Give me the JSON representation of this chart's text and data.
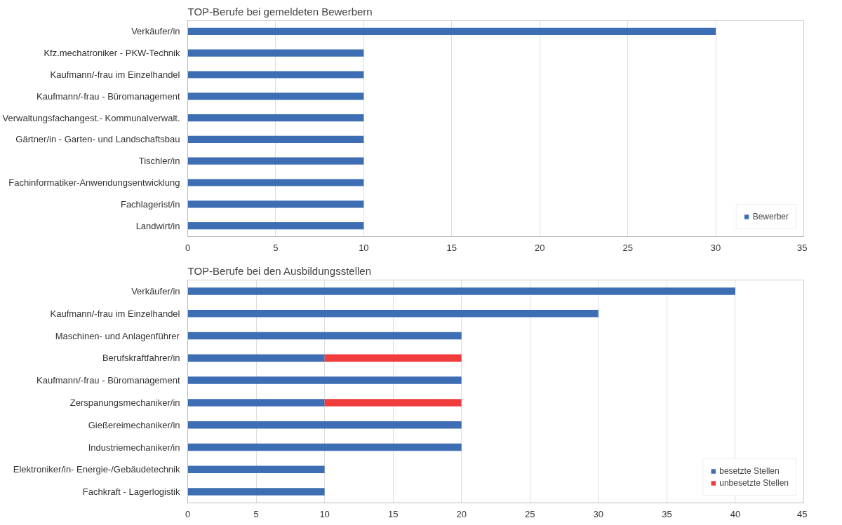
{
  "chart_data": [
    {
      "type": "bar",
      "orientation": "horizontal",
      "title": "TOP-Berufe bei gemeldeten Bewerbern",
      "categories": [
        "Verkäufer/in",
        "Kfz.mechatroniker - PKW-Technik",
        "Kaufmann/-frau im Einzelhandel",
        "Kaufmann/-frau - Büromanagement",
        "Verwaltungsfachangest.- Kommunalverwalt.",
        "Gärtner/in - Garten- und Landschaftsbau",
        "Tischler/in",
        "Fachinformatiker-Anwendungsentwicklung",
        "Fachlagerist/in",
        "Landwirt/in"
      ],
      "series": [
        {
          "name": "Bewerber",
          "color": "#3d6eb4",
          "values": [
            30,
            10,
            10,
            10,
            10,
            10,
            10,
            10,
            10,
            10
          ]
        }
      ],
      "xlim": [
        0,
        35
      ],
      "xticks": [
        0,
        5,
        10,
        15,
        20,
        25,
        30,
        35
      ],
      "grid": "x",
      "legend": "bottom right"
    },
    {
      "type": "bar",
      "orientation": "horizontal",
      "stacked": true,
      "title": "TOP-Berufe bei den Ausbildungsstellen",
      "categories": [
        "Verkäufer/in",
        "Kaufmann/-frau im Einzelhandel",
        "Maschinen- und Anlagenführer",
        "Berufskraftfahrer/in",
        "Kaufmann/-frau - Büromanagement",
        "Zerspanungsmechaniker/in",
        "Gießereimechaniker/in",
        "Industriemechaniker/in",
        "Elektroniker/in- Energie-/Gebäudetechnik",
        "Fachkraft - Lagerlogistik"
      ],
      "series": [
        {
          "name": "besetzte Stellen",
          "color": "#3d6eb4",
          "values": [
            40,
            30,
            20,
            10,
            20,
            10,
            20,
            20,
            10,
            10
          ]
        },
        {
          "name": "unbesetzte Stellen",
          "color": "#f03c3c",
          "values": [
            null,
            null,
            null,
            10,
            null,
            10,
            null,
            null,
            null,
            null
          ]
        }
      ],
      "xlim": [
        0,
        45
      ],
      "xticks": [
        0,
        5,
        10,
        15,
        20,
        25,
        30,
        35,
        40,
        45
      ],
      "grid": "x",
      "legend": "bottom right"
    }
  ]
}
